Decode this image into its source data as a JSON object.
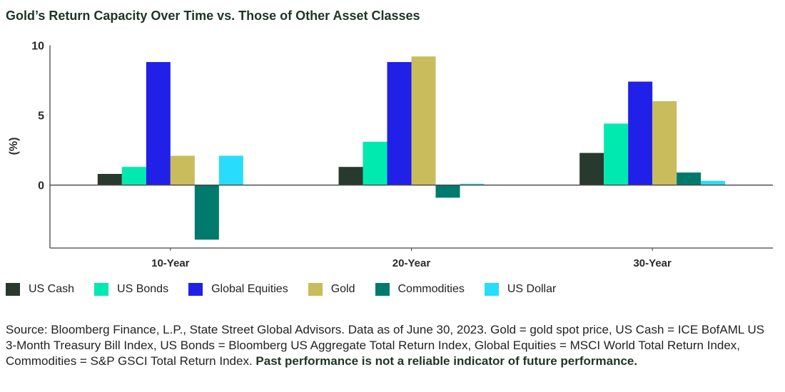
{
  "title": "Gold’s Return Capacity Over Time vs. Those of Other Asset Classes",
  "chart_data": {
    "type": "bar",
    "title": "Gold’s Return Capacity Over Time vs. Those of Other Asset Classes",
    "xlabel": "",
    "ylabel": "(%)",
    "ylim": [
      -4.5,
      10
    ],
    "yticks": [
      0,
      5,
      10
    ],
    "ytick_labels": [
      "0",
      "5",
      "10"
    ],
    "grid": false,
    "legend_placement": "bottom",
    "categories": [
      "10-Year",
      "20-Year",
      "30-Year"
    ],
    "series": [
      {
        "name": "US Cash",
        "color": "#28392e",
        "values": [
          0.8,
          1.3,
          2.3
        ]
      },
      {
        "name": "US Bonds",
        "color": "#00eab0",
        "values": [
          1.3,
          3.1,
          4.4
        ]
      },
      {
        "name": "Global Equities",
        "color": "#2020e8",
        "values": [
          8.8,
          8.8,
          7.4
        ]
      },
      {
        "name": "Gold",
        "color": "#c8bc5c",
        "values": [
          2.1,
          9.2,
          6.0
        ]
      },
      {
        "name": "Commodities",
        "color": "#007a6c",
        "values": [
          -3.9,
          -0.9,
          0.9
        ]
      },
      {
        "name": "US Dollar",
        "color": "#28dcfc",
        "values": [
          2.1,
          0.1,
          0.3
        ]
      }
    ]
  },
  "source": {
    "text": "Source: Bloomberg Finance, L.P., State Street Global Advisors. Data as of June 30, 2023. Gold = gold spot price, US Cash = ICE BofAML US 3-Month Treasury Bill Index, US Bonds = Bloomberg US Aggregate Total Return Index, Global Equities = MSCI World Total Return Index, Commodities = S&P GSCI Total Return Index.",
    "bold": "Past performance is not a reliable indicator of future performance."
  }
}
